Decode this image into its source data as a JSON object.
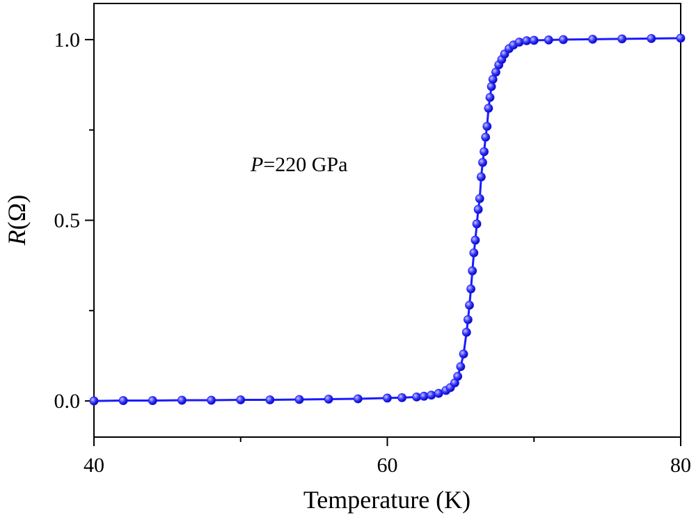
{
  "chart_data": {
    "type": "line-scatter",
    "x_label": "Temperature (K)",
    "y_label": {
      "italic": "R",
      "rest": "(Ω)"
    },
    "annotation": {
      "italic": "P",
      "rest": "=220 GPa"
    },
    "color": "#1a1aff",
    "xlim": [
      40,
      80
    ],
    "xticks": [
      40,
      60,
      80
    ],
    "xminorticks": [
      50,
      70
    ],
    "ylim": [
      -0.1,
      1.1
    ],
    "yticks": [
      {
        "value": 0,
        "label": "0.0"
      },
      {
        "value": 0.5,
        "label": "0.5"
      },
      {
        "value": 1,
        "label": "1.0"
      }
    ],
    "yminorticks": [
      0.25,
      0.75
    ],
    "x": [
      40,
      42,
      44,
      46,
      48,
      50,
      52,
      54,
      56,
      58,
      60,
      61,
      62,
      62.5,
      63,
      63.5,
      64,
      64.3,
      64.6,
      64.8,
      65.0,
      65.2,
      65.4,
      65.5,
      65.6,
      65.7,
      65.8,
      65.9,
      66.0,
      66.1,
      66.2,
      66.3,
      66.4,
      66.5,
      66.6,
      66.7,
      66.8,
      66.9,
      67.0,
      67.1,
      67.2,
      67.4,
      67.6,
      67.8,
      68.0,
      68.3,
      68.6,
      69.0,
      69.5,
      70,
      71,
      72,
      74,
      76,
      78,
      80
    ],
    "values": [
      0.0,
      0.001,
      0.001,
      0.002,
      0.002,
      0.003,
      0.003,
      0.004,
      0.005,
      0.006,
      0.008,
      0.009,
      0.011,
      0.013,
      0.016,
      0.021,
      0.029,
      0.037,
      0.05,
      0.068,
      0.095,
      0.13,
      0.19,
      0.225,
      0.265,
      0.31,
      0.36,
      0.41,
      0.445,
      0.49,
      0.53,
      0.56,
      0.62,
      0.66,
      0.69,
      0.73,
      0.76,
      0.81,
      0.84,
      0.87,
      0.89,
      0.91,
      0.93,
      0.945,
      0.96,
      0.975,
      0.985,
      0.993,
      0.997,
      0.998,
      0.999,
      1.0,
      1.001,
      1.002,
      1.003,
      1.004
    ]
  }
}
